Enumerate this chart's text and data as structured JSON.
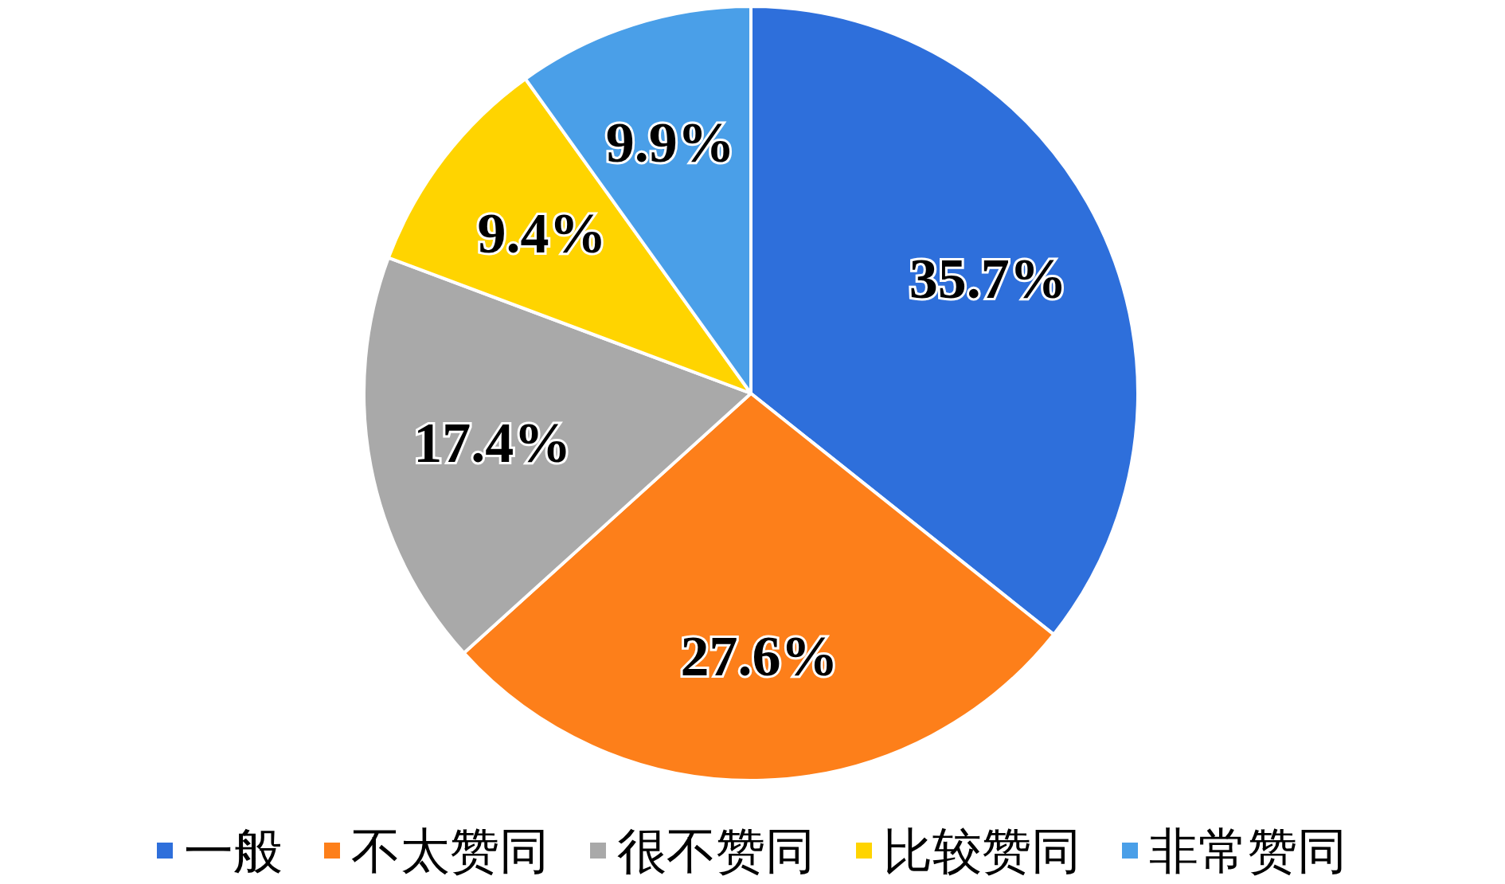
{
  "chart_data": {
    "type": "pie",
    "categories": [
      "一般",
      "不太赞同",
      "很不赞同",
      "比较赞同",
      "非常赞同"
    ],
    "values": [
      35.7,
      27.6,
      17.4,
      9.4,
      9.9
    ],
    "colors": [
      "#2e6fdb",
      "#fd7f1a",
      "#a9a9a9",
      "#ffd400",
      "#4a9fe8"
    ],
    "value_labels": [
      "35.7%",
      "27.6%",
      "17.4%",
      "9.4%",
      "9.9%"
    ],
    "legend": "bottom"
  }
}
